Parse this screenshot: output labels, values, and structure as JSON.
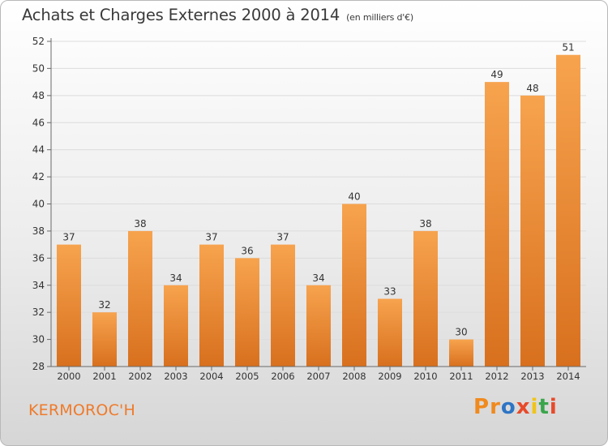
{
  "header": {
    "title": "Achats et Charges Externes 2000 à 2014",
    "subtitle": "(en milliers d'€)"
  },
  "footer": {
    "commune": "KERMOROC'H",
    "logo": "Proxiti",
    "logo_colors": [
      "#f08a1e",
      "#f08a1e",
      "#2e74c4",
      "#e84a2a",
      "#f0c419",
      "#3aa54a",
      "#e84a2a"
    ]
  },
  "colors": {
    "bar_top": "#f7a34e",
    "bar_bottom": "#d8701e",
    "axis": "#6a6a6a",
    "grid": "#dcdcdc",
    "text": "#333333"
  },
  "chart_data": {
    "type": "bar",
    "title": "Achats et Charges Externes 2000 à 2014",
    "subtitle": "(en milliers d'€)",
    "categories": [
      "2000",
      "2001",
      "2002",
      "2003",
      "2004",
      "2005",
      "2006",
      "2007",
      "2008",
      "2009",
      "2010",
      "2011",
      "2012",
      "2013",
      "2014"
    ],
    "values": [
      37,
      32,
      38,
      34,
      37,
      36,
      37,
      34,
      40,
      33,
      38,
      30,
      49,
      48,
      51
    ],
    "ylim": [
      28,
      52
    ],
    "yticks": [
      28,
      30,
      32,
      34,
      36,
      38,
      40,
      42,
      44,
      46,
      48,
      50,
      52
    ],
    "xlabel": "",
    "ylabel": "",
    "grid": true,
    "data_labels": true
  }
}
